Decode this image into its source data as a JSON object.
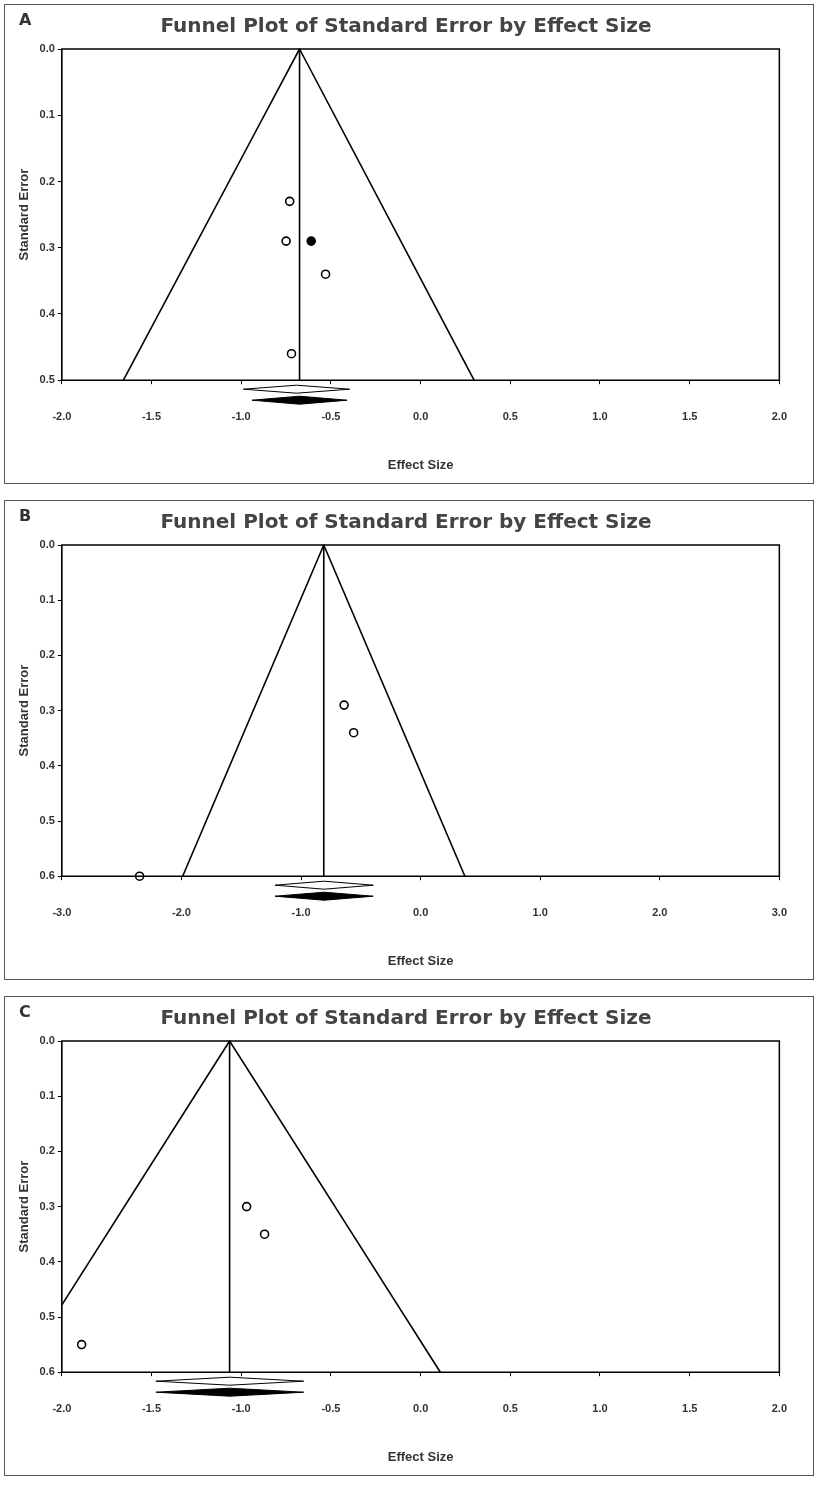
{
  "chart_data": [
    {
      "type": "scatter",
      "title": "Funnel Plot of Standard Error by Effect Size",
      "xlabel": "Effect Size",
      "ylabel": "Standard Error",
      "annotations": [
        "A"
      ],
      "xlim": [
        -2,
        2
      ],
      "xticks": [
        {
          "value": -2,
          "label": "-2.0"
        },
        {
          "value": -1.5,
          "label": "-1.5"
        },
        {
          "value": -1,
          "label": "-1.0"
        },
        {
          "value": -0.5,
          "label": "-0.5"
        },
        {
          "value": 0,
          "label": "0.0"
        },
        {
          "value": 0.5,
          "label": "0.5"
        },
        {
          "value": 1,
          "label": "1.0"
        },
        {
          "value": 1.5,
          "label": "1.5"
        },
        {
          "value": 2,
          "label": "2.0"
        }
      ],
      "ylim": [
        0.5,
        0
      ],
      "yticks": [
        {
          "value": 0,
          "label": "0.0"
        },
        {
          "value": 0.1,
          "label": "0.1"
        },
        {
          "value": 0.2,
          "label": "0.2"
        },
        {
          "value": 0.3,
          "label": "0.3"
        },
        {
          "value": 0.4,
          "label": "0.4"
        },
        {
          "value": 0.5,
          "label": "0.5"
        }
      ],
      "grid": false,
      "legend": false,
      "marker": "circle",
      "series": [
        {
          "type": "line",
          "marker": "none",
          "color": "#000000",
          "x": [
            -0.675,
            -1.657
          ],
          "values": [
            0,
            0.5
          ]
        },
        {
          "type": "line",
          "marker": "none",
          "color": "#000000",
          "x": [
            -0.675,
            0.298
          ],
          "values": [
            0,
            0.5
          ]
        },
        {
          "type": "line",
          "marker": "none",
          "color": "#000000",
          "x": [
            -0.675,
            -0.675
          ],
          "values": [
            0,
            0.5
          ]
        },
        {
          "type": "scatter",
          "color": "#ffffff",
          "x": [
            -0.73,
            -0.75,
            -0.53,
            -0.72
          ],
          "values": [
            0.23,
            0.29,
            0.34,
            0.46
          ]
        },
        {
          "type": "scatter",
          "color": "#000000",
          "x": [
            -0.61
          ],
          "values": [
            0.29
          ]
        }
      ]
    },
    {
      "type": "scatter",
      "title": "Funnel Plot of Standard Error by Effect Size",
      "xlabel": "Effect Size",
      "ylabel": "Standard Error",
      "annotations": [
        "B"
      ],
      "xlim": [
        -3,
        3
      ],
      "xticks": [
        {
          "value": -3,
          "label": "-3.0"
        },
        {
          "value": -2,
          "label": "-2.0"
        },
        {
          "value": -1,
          "label": "-1.0"
        },
        {
          "value": 0,
          "label": "0.0"
        },
        {
          "value": 1,
          "label": "1.0"
        },
        {
          "value": 2,
          "label": "2.0"
        },
        {
          "value": 3,
          "label": "3.0"
        }
      ],
      "ylim": [
        0.6,
        0
      ],
      "yticks": [
        {
          "value": 0,
          "label": "0.0"
        },
        {
          "value": 0.1,
          "label": "0.1"
        },
        {
          "value": 0.2,
          "label": "0.2"
        },
        {
          "value": 0.3,
          "label": "0.3"
        },
        {
          "value": 0.4,
          "label": "0.4"
        },
        {
          "value": 0.5,
          "label": "0.5"
        },
        {
          "value": 0.6,
          "label": "0.6"
        }
      ],
      "grid": false,
      "legend": false,
      "marker": "circle",
      "series": [
        {
          "type": "line",
          "marker": "none",
          "color": "#000000",
          "x": [
            -0.81,
            -1.99
          ],
          "values": [
            0,
            0.6
          ]
        },
        {
          "type": "line",
          "marker": "none",
          "color": "#000000",
          "x": [
            -0.81,
            0.37
          ],
          "values": [
            0,
            0.6
          ]
        },
        {
          "type": "line",
          "marker": "none",
          "color": "#000000",
          "x": [
            -0.81,
            -0.81
          ],
          "values": [
            0,
            0.6
          ]
        },
        {
          "type": "scatter",
          "color": "#ffffff",
          "x": [
            -0.64,
            -0.56,
            -2.35
          ],
          "values": [
            0.29,
            0.34,
            0.6
          ]
        }
      ]
    },
    {
      "type": "scatter",
      "title": "Funnel Plot of Standard Error by Effect Size",
      "xlabel": "Effect Size",
      "ylabel": "Standard Error",
      "annotations": [
        "C"
      ],
      "xlim": [
        -2,
        2
      ],
      "xticks": [
        {
          "value": -2,
          "label": "-2.0"
        },
        {
          "value": -1.5,
          "label": "-1.5"
        },
        {
          "value": -1,
          "label": "-1.0"
        },
        {
          "value": -0.5,
          "label": "-0.5"
        },
        {
          "value": 0,
          "label": "0.0"
        },
        {
          "value": 0.5,
          "label": "0.5"
        },
        {
          "value": 1,
          "label": "1.0"
        },
        {
          "value": 1.5,
          "label": "1.5"
        },
        {
          "value": 2,
          "label": "2.0"
        }
      ],
      "ylim": [
        0.6,
        0
      ],
      "yticks": [
        {
          "value": 0,
          "label": "0.0"
        },
        {
          "value": 0.1,
          "label": "0.1"
        },
        {
          "value": 0.2,
          "label": "0.2"
        },
        {
          "value": 0.3,
          "label": "0.3"
        },
        {
          "value": 0.4,
          "label": "0.4"
        },
        {
          "value": 0.5,
          "label": "0.5"
        },
        {
          "value": 0.6,
          "label": "0.6"
        }
      ],
      "grid": false,
      "legend": false,
      "marker": "circle",
      "series": [
        {
          "type": "line",
          "marker": "none",
          "color": "#000000",
          "x": [
            -1.065,
            -2
          ],
          "values": [
            0,
            0.478
          ]
        },
        {
          "type": "line",
          "marker": "none",
          "color": "#000000",
          "x": [
            -1.065,
            0.11
          ],
          "values": [
            0,
            0.6
          ]
        },
        {
          "type": "line",
          "marker": "none",
          "color": "#000000",
          "x": [
            -1.065,
            -1.065
          ],
          "values": [
            0,
            0.6
          ]
        },
        {
          "type": "scatter",
          "color": "#ffffff",
          "x": [
            -0.97,
            -0.87,
            -1.89
          ],
          "values": [
            0.3,
            0.35,
            0.55
          ]
        }
      ]
    }
  ]
}
